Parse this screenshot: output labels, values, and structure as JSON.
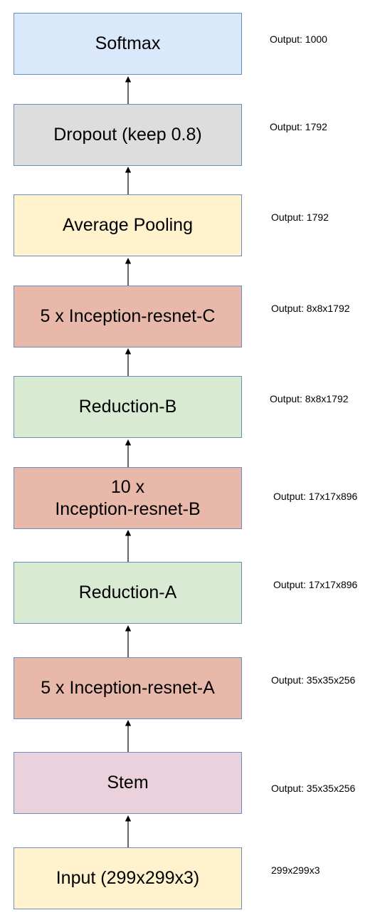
{
  "diagram": {
    "colors": {
      "blue": "#dae8fc",
      "gray": "#dddddd",
      "yellow": "#fff2cc",
      "red": "#e8b8aa",
      "green": "#d9ead3",
      "pink": "#ead1dc",
      "border": "#6c8ebf",
      "arrow": "#000000"
    },
    "blocks": [
      {
        "label": "Softmax",
        "color": "#dae8fc",
        "note": "Output: 1000"
      },
      {
        "label": "Dropout (keep 0.8)",
        "color": "#dddddd",
        "note": "Output: 1792"
      },
      {
        "label": "Average Pooling",
        "color": "#fff2cc",
        "note": "Output: 1792"
      },
      {
        "label": "5 x Inception-resnet-C",
        "color": "#e8b8aa",
        "note": "Output: 8x8x1792"
      },
      {
        "label": "Reduction-B",
        "color": "#d9ead3",
        "note": "Output: 8x8x1792"
      },
      {
        "label": "10 x\nInception-resnet-B",
        "color": "#e8b8aa",
        "note": "Output: 17x17x896"
      },
      {
        "label": "Reduction-A",
        "color": "#d9ead3",
        "note": "Output: 17x17x896"
      },
      {
        "label": "5 x Inception-resnet-A",
        "color": "#e8b8aa",
        "note": "Output: 35x35x256"
      },
      {
        "label": "Stem",
        "color": "#ead1dc",
        "note": "Output: 35x35x256"
      },
      {
        "label": "Input (299x299x3)",
        "color": "#fff2cc",
        "note": "299x299x3"
      }
    ]
  }
}
